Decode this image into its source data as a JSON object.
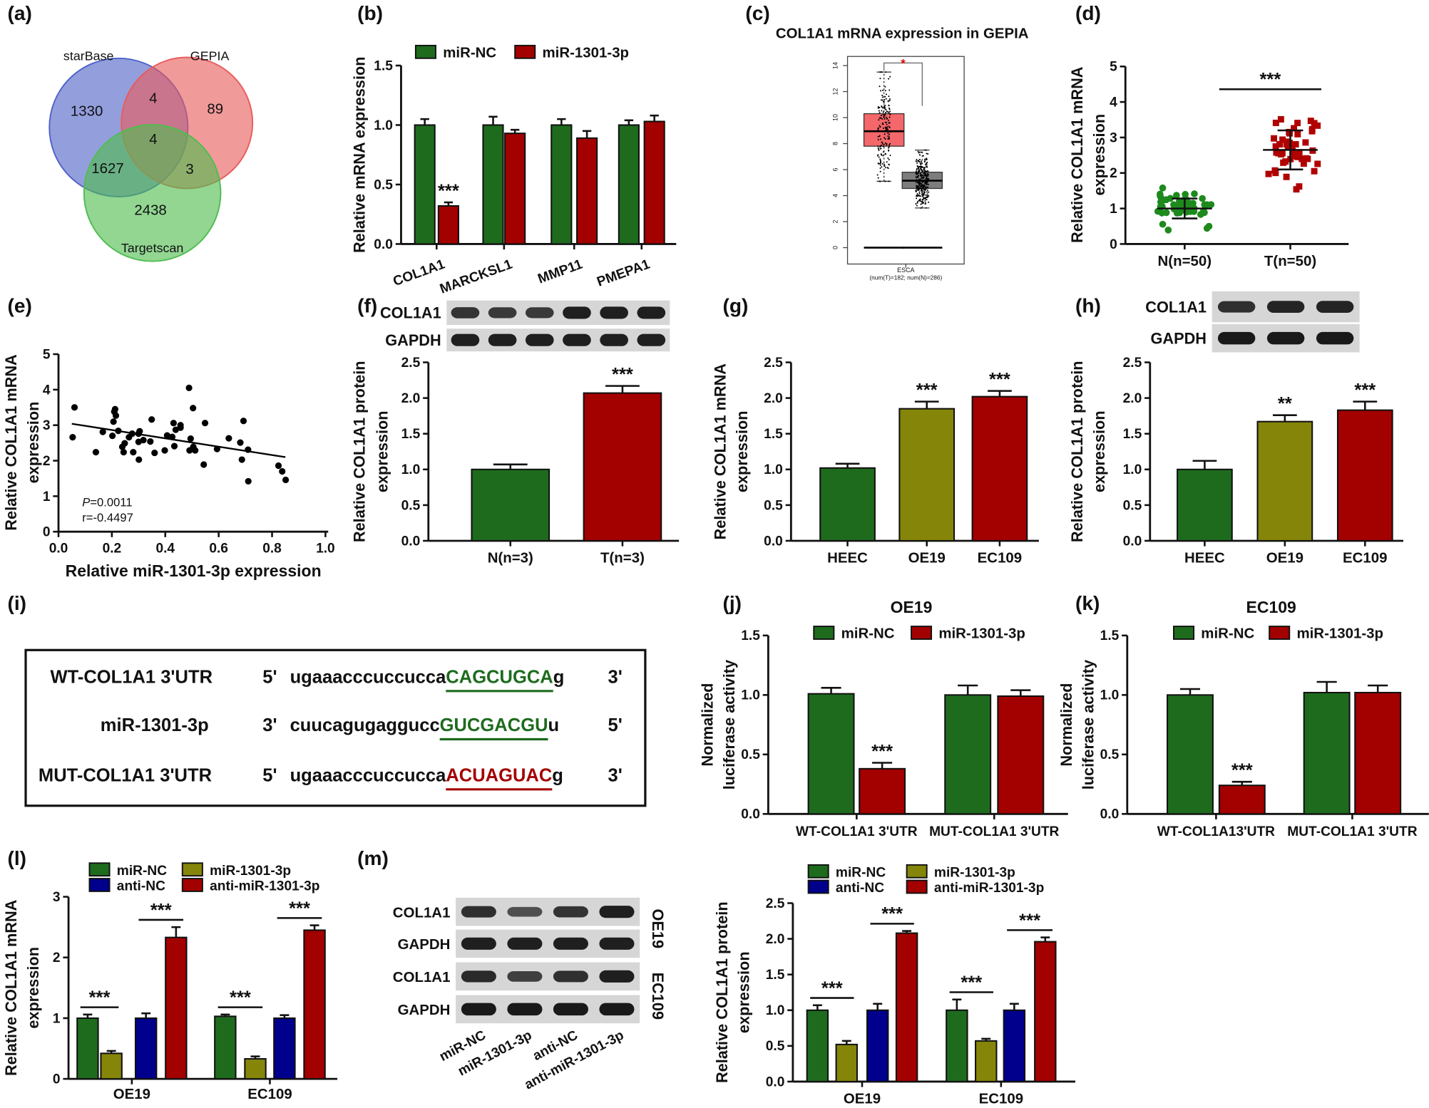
{
  "figure_labels": [
    "(a)",
    "(b)",
    "(c)",
    "(d)",
    "(e)",
    "(f)",
    "(g)",
    "(h)",
    "(i)",
    "(j)",
    "(k)",
    "(l)",
    "(m)"
  ],
  "colors": {
    "green": "#1e6b1e",
    "red": "#a30000",
    "olive": "#85850a",
    "blue": "#00008c",
    "grey": "#7a7a7a"
  },
  "chart_data": [
    {
      "id": "a",
      "type": "venn",
      "sets": [
        {
          "name": "starBase",
          "color": "#5062c8"
        },
        {
          "name": "GEPIA",
          "color": "#e85c5c"
        },
        {
          "name": "Targetscan",
          "color": "#4fbd4f"
        }
      ],
      "regions": [
        {
          "label": "starBase only",
          "value": "1330"
        },
        {
          "label": "starBase & GEPIA",
          "value": "4"
        },
        {
          "label": "GEPIA only",
          "value": "89"
        },
        {
          "label": "all three",
          "value": "4"
        },
        {
          "label": "starBase & Targetscan",
          "value": "1627"
        },
        {
          "label": "GEPIA & Targetscan",
          "value": "3"
        },
        {
          "label": "Targetscan only",
          "value": "2438"
        }
      ]
    },
    {
      "id": "b",
      "type": "bar",
      "ylabel": [
        "Relative mRNA expression"
      ],
      "ylim": [
        0,
        1.5
      ],
      "yticks": [
        "0.0",
        "0.5",
        "1.0",
        "1.5"
      ],
      "categories": [
        "COL1A1",
        "MARCKSL1",
        "MMP11",
        "PMEPA1"
      ],
      "series": [
        {
          "name": "miR-NC",
          "color": "#1e6b1e",
          "values": [
            1.0,
            1.0,
            1.0,
            1.0
          ],
          "errors": [
            0.05,
            0.07,
            0.05,
            0.04
          ],
          "significance": [
            "",
            "",
            "",
            ""
          ]
        },
        {
          "name": "miR-1301-3p",
          "color": "#a30000",
          "values": [
            0.32,
            0.93,
            0.89,
            1.03
          ],
          "errors": [
            0.03,
            0.03,
            0.06,
            0.05
          ],
          "significance": [
            "***",
            "",
            "",
            ""
          ]
        }
      ]
    },
    {
      "id": "c",
      "type": "box",
      "title": "COL1A1 mRNA expression in GEPIA",
      "ylim": [
        0,
        14
      ],
      "yticks": [
        "0",
        "2",
        "4",
        "6",
        "8",
        "10",
        "12",
        "14"
      ],
      "category": "ESCA",
      "subtitle": "(num(T)=182; num(N)=286)",
      "significance": "*",
      "groups": [
        {
          "name": "T",
          "n": 182,
          "color": "#f4676a",
          "q1": 7.8,
          "median": 8.95,
          "q3": 10.3,
          "whisker_low": 5.1,
          "whisker_high": 13.5
        },
        {
          "name": "N",
          "n": 286,
          "color": "#7d7d7d",
          "q1": 4.55,
          "median": 5.15,
          "q3": 5.8,
          "whisker_low": 3.05,
          "whisker_high": 7.5
        }
      ]
    },
    {
      "id": "d",
      "type": "scatter-dot",
      "ylabel": [
        "Relative COL1A1 mRNA",
        "expression"
      ],
      "ylim": [
        0,
        5
      ],
      "yticks": [
        "0",
        "1",
        "2",
        "3",
        "4",
        "5"
      ],
      "groups": [
        {
          "name": "N(n=50)",
          "n": 50,
          "mean": 1.0,
          "sd": 0.28,
          "color": "#1e8a1e"
        },
        {
          "name": "T(n=50)",
          "n": 50,
          "mean": 2.65,
          "sd": 0.55,
          "color": "#b00000"
        }
      ],
      "significance": "***"
    },
    {
      "id": "e",
      "type": "scatter",
      "xlabel": "Relative miR-1301-3p expression",
      "ylabel": [
        "Relative COL1A1 mRNA",
        "expression"
      ],
      "xlim": [
        0,
        1
      ],
      "ylim": [
        0,
        5
      ],
      "xticks": [
        "0.0",
        "0.2",
        "0.4",
        "0.6",
        "0.8",
        "1.0"
      ],
      "yticks": [
        "0",
        "1",
        "2",
        "3",
        "4",
        "5"
      ],
      "points": [
        [
          0.06,
          3.5
        ],
        [
          0.053,
          2.66
        ],
        [
          0.14,
          2.24
        ],
        [
          0.166,
          2.81
        ],
        [
          0.202,
          2.7
        ],
        [
          0.206,
          3.1
        ],
        [
          0.209,
          3.38
        ],
        [
          0.212,
          3.45
        ],
        [
          0.215,
          3.27
        ],
        [
          0.224,
          2.84
        ],
        [
          0.239,
          2.39
        ],
        [
          0.248,
          2.49
        ],
        [
          0.244,
          2.24
        ],
        [
          0.264,
          2.66
        ],
        [
          0.276,
          2.76
        ],
        [
          0.28,
          2.24
        ],
        [
          0.3,
          2.76
        ],
        [
          0.304,
          2.83
        ],
        [
          0.3,
          2.53
        ],
        [
          0.301,
          2.03
        ],
        [
          0.318,
          2.58
        ],
        [
          0.344,
          2.54
        ],
        [
          0.349,
          3.16
        ],
        [
          0.36,
          2.22
        ],
        [
          0.398,
          2.29
        ],
        [
          0.407,
          2.71
        ],
        [
          0.426,
          2.67
        ],
        [
          0.431,
          3.06
        ],
        [
          0.434,
          2.41
        ],
        [
          0.439,
          2.87
        ],
        [
          0.457,
          2.93
        ],
        [
          0.457,
          3.0
        ],
        [
          0.489,
          4.05
        ],
        [
          0.495,
          2.62
        ],
        [
          0.491,
          2.29
        ],
        [
          0.504,
          3.48
        ],
        [
          0.505,
          2.39
        ],
        [
          0.512,
          2.29
        ],
        [
          0.544,
          1.89
        ],
        [
          0.549,
          3.06
        ],
        [
          0.594,
          2.33
        ],
        [
          0.638,
          2.63
        ],
        [
          0.681,
          2.51
        ],
        [
          0.687,
          2.03
        ],
        [
          0.693,
          3.12
        ],
        [
          0.71,
          2.31
        ],
        [
          0.711,
          1.42
        ],
        [
          0.824,
          1.86
        ],
        [
          0.838,
          1.7
        ],
        [
          0.851,
          1.46
        ]
      ],
      "fit": {
        "x": [
          0.05,
          0.85
        ],
        "y": [
          3.04,
          2.1
        ]
      },
      "annotation": {
        "p_symbol": "P",
        "p_value": "=0.0011",
        "r": "r=-0.4497"
      }
    },
    {
      "id": "f",
      "type": "bar",
      "ylabel": [
        "Relative COL1A1 protein",
        "expression"
      ],
      "ylim": [
        0,
        2.5
      ],
      "yticks": [
        "0.0",
        "0.5",
        "1.0",
        "1.5",
        "2.0",
        "2.5"
      ],
      "blot": [
        {
          "label": "COL1A1",
          "bands": [
            0.7,
            0.65,
            0.65,
            0.9,
            0.9,
            0.9
          ]
        },
        {
          "label": "GAPDH",
          "bands": [
            0.9,
            0.9,
            0.9,
            0.9,
            0.9,
            0.9
          ]
        }
      ],
      "categories": [
        "N(n=3)",
        "T(n=3)"
      ],
      "series": [
        {
          "name": "",
          "colors": [
            "#1e6b1e",
            "#a30000"
          ],
          "values": [
            1.0,
            2.07
          ],
          "errors": [
            0.07,
            0.1
          ],
          "significance": [
            "",
            "***"
          ]
        }
      ]
    },
    {
      "id": "g",
      "type": "bar",
      "ylabel": [
        "Relative COL1A1 mRNA",
        "expression"
      ],
      "ylim": [
        0,
        2.5
      ],
      "yticks": [
        "0.0",
        "0.5",
        "1.0",
        "1.5",
        "2.0",
        "2.5"
      ],
      "categories": [
        "HEEC",
        "OE19",
        "EC109"
      ],
      "series": [
        {
          "name": "",
          "colors": [
            "#1e6b1e",
            "#85850a",
            "#a30000"
          ],
          "values": [
            1.02,
            1.85,
            2.02
          ],
          "errors": [
            0.06,
            0.1,
            0.08
          ],
          "significance": [
            "",
            "***",
            "***"
          ]
        }
      ]
    },
    {
      "id": "h",
      "type": "bar",
      "ylabel": [
        "Relative COL1A1 protein",
        "expression"
      ],
      "ylim": [
        0,
        2.5
      ],
      "yticks": [
        "0.0",
        "0.5",
        "1.0",
        "1.5",
        "2.0",
        "2.5"
      ],
      "blot": [
        {
          "label": "COL1A1",
          "bands": [
            0.75,
            0.85,
            0.85
          ]
        },
        {
          "label": "GAPDH",
          "bands": [
            0.95,
            0.95,
            0.95
          ]
        }
      ],
      "categories": [
        "HEEC",
        "OE19",
        "EC109"
      ],
      "series": [
        {
          "name": "",
          "colors": [
            "#1e6b1e",
            "#85850a",
            "#a30000"
          ],
          "values": [
            1.0,
            1.67,
            1.83
          ],
          "errors": [
            0.12,
            0.09,
            0.12
          ],
          "significance": [
            "",
            "**",
            "***"
          ]
        }
      ]
    },
    {
      "id": "i",
      "type": "sequence",
      "rows": [
        {
          "name": "WT-COL1A1  3'UTR",
          "end5": "5'",
          "seq": "ugaaacccuccucca",
          "site": "CAGCUGCA",
          "tail": "g",
          "end3": "3'",
          "site_color": "#1e6b1e"
        },
        {
          "name": "miR-1301-3p",
          "end5": "3'",
          "seq": "cuucagugaggucc",
          "site": "GUCGACGU",
          "tail": "u",
          "end3": "5'",
          "site_color": "#1e6b1e"
        },
        {
          "name": "MUT-COL1A1  3'UTR",
          "end5": "5'",
          "seq": "ugaaacccuccucca",
          "site": "ACUAGUAC",
          "tail": "g",
          "end3": "3'",
          "site_color": "#a30000"
        }
      ]
    },
    {
      "id": "j",
      "type": "bar",
      "title": "OE19",
      "ylabel": [
        "Normalized",
        "luciferase activity"
      ],
      "ylim": [
        0,
        1.5
      ],
      "yticks": [
        "0.0",
        "0.5",
        "1.0",
        "1.5"
      ],
      "categories": [
        "WT-COL1A1  3'UTR",
        "MUT-COL1A1  3'UTR"
      ],
      "series": [
        {
          "name": "miR-NC",
          "color": "#1e6b1e",
          "values": [
            1.01,
            1.0
          ],
          "errors": [
            0.05,
            0.08
          ],
          "significance": [
            "",
            ""
          ]
        },
        {
          "name": "miR-1301-3p",
          "color": "#a30000",
          "values": [
            0.38,
            0.99
          ],
          "errors": [
            0.05,
            0.05
          ],
          "significance": [
            "***",
            ""
          ]
        }
      ]
    },
    {
      "id": "k",
      "type": "bar",
      "title": "EC109",
      "ylabel": [
        "Normalized",
        "luciferase activity"
      ],
      "ylim": [
        0,
        1.5
      ],
      "yticks": [
        "0.0",
        "0.5",
        "1.0",
        "1.5"
      ],
      "categories": [
        "WT-COL1A13'UTR",
        "MUT-COL1A1  3'UTR"
      ],
      "series": [
        {
          "name": "miR-NC",
          "color": "#1e6b1e",
          "values": [
            1.0,
            1.02
          ],
          "errors": [
            0.05,
            0.09
          ],
          "significance": [
            "",
            ""
          ]
        },
        {
          "name": "miR-1301-3p",
          "color": "#a30000",
          "values": [
            0.24,
            1.02
          ],
          "errors": [
            0.03,
            0.06
          ],
          "significance": [
            "***",
            ""
          ]
        }
      ]
    },
    {
      "id": "l",
      "type": "bar",
      "ylabel": [
        "Relative COL1A1 mRNA",
        "expression"
      ],
      "ylim": [
        0,
        3
      ],
      "yticks": [
        "0",
        "1",
        "2",
        "3"
      ],
      "categories": [
        "OE19",
        "EC109"
      ],
      "series": [
        {
          "name": "miR-NC",
          "color": "#1e6b1e",
          "values": [
            1.0,
            1.03
          ],
          "errors": [
            0.06,
            0.03
          ]
        },
        {
          "name": "miR-1301-3p",
          "color": "#85850a",
          "values": [
            0.42,
            0.33
          ],
          "errors": [
            0.04,
            0.04
          ]
        },
        {
          "name": "anti-NC",
          "color": "#00008c",
          "values": [
            1.0,
            1.0
          ],
          "errors": [
            0.08,
            0.05
          ]
        },
        {
          "name": "anti-miR-1301-3p",
          "color": "#a30000",
          "values": [
            2.33,
            2.45
          ],
          "errors": [
            0.17,
            0.08
          ]
        }
      ],
      "comparisons": [
        {
          "category": 0,
          "pair": [
            0,
            1
          ],
          "label": "***"
        },
        {
          "category": 0,
          "pair": [
            2,
            3
          ],
          "label": "***"
        },
        {
          "category": 1,
          "pair": [
            0,
            1
          ],
          "label": "***"
        },
        {
          "category": 1,
          "pair": [
            2,
            3
          ],
          "label": "***"
        }
      ]
    },
    {
      "id": "m",
      "type": "bar",
      "ylabel": [
        "Relative COL1A1 protein",
        "expression"
      ],
      "ylim": [
        0,
        2.5
      ],
      "yticks": [
        "0.0",
        "0.5",
        "1.0",
        "1.5",
        "2.0",
        "2.5"
      ],
      "blot": [
        {
          "label": "COL1A1",
          "bands": [
            0.75,
            0.45,
            0.7,
            0.9
          ]
        },
        {
          "label": "GAPDH",
          "bands": [
            0.9,
            0.9,
            0.9,
            0.9
          ]
        },
        {
          "label": "COL1A1",
          "bands": [
            0.8,
            0.6,
            0.75,
            0.9
          ]
        },
        {
          "label": "GAPDH",
          "bands": [
            0.95,
            0.95,
            0.95,
            0.95
          ]
        }
      ],
      "blot_cell_lines": [
        "OE19",
        "EC109"
      ],
      "blot_lanes": [
        "miR-NC",
        "miR-1301-3p",
        "anti-NC",
        "anti-miR-1301-3p"
      ],
      "categories": [
        "OE19",
        "EC109"
      ],
      "series": [
        {
          "name": "miR-NC",
          "color": "#1e6b1e",
          "values": [
            1.0,
            1.0
          ],
          "errors": [
            0.07,
            0.15
          ]
        },
        {
          "name": "miR-1301-3p",
          "color": "#85850a",
          "values": [
            0.52,
            0.57
          ],
          "errors": [
            0.05,
            0.03
          ]
        },
        {
          "name": "anti-NC",
          "color": "#00008c",
          "values": [
            1.0,
            1.0
          ],
          "errors": [
            0.09,
            0.09
          ]
        },
        {
          "name": "anti-miR-1301-3p",
          "color": "#a30000",
          "values": [
            2.08,
            1.96
          ],
          "errors": [
            0.03,
            0.06
          ]
        }
      ],
      "comparisons": [
        {
          "category": 0,
          "pair": [
            0,
            1
          ],
          "label": "***"
        },
        {
          "category": 0,
          "pair": [
            2,
            3
          ],
          "label": "***"
        },
        {
          "category": 1,
          "pair": [
            0,
            1
          ],
          "label": "***"
        },
        {
          "category": 1,
          "pair": [
            2,
            3
          ],
          "label": "***"
        }
      ]
    }
  ]
}
